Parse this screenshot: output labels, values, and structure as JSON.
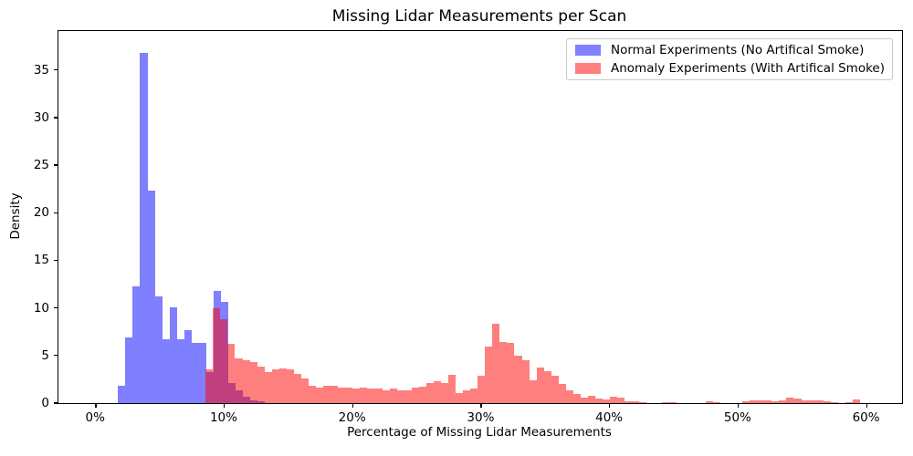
{
  "title": "Missing Lidar Measurements per Scan",
  "xlabel": "Percentage of Missing Lidar Measurements",
  "ylabel": "Density",
  "legend": {
    "position": "upper right",
    "items": [
      {
        "label": "Normal Experiments (No Artifical Smoke)",
        "color": "rgba(0,0,255,0.5)"
      },
      {
        "label": "Anomaly Experiments (With Artifical Smoke)",
        "color": "rgba(255,0,0,0.5)"
      }
    ]
  },
  "chart_data": {
    "type": "bar",
    "subtype": "overlaid-density-histogram",
    "title": "Missing Lidar Measurements per Scan",
    "xlabel": "Percentage of Missing Lidar Measurements",
    "ylabel": "Density",
    "grid": false,
    "legend_position": "upper right",
    "xlim": [
      -2.86,
      62.8
    ],
    "ylim": [
      0,
      39.1
    ],
    "x_tick_values": [
      0,
      10,
      20,
      30,
      40,
      50,
      60
    ],
    "x_tick_labels": [
      "0%",
      "10%",
      "20%",
      "30%",
      "40%",
      "50%",
      "60%"
    ],
    "y_tick_values": [
      0,
      5,
      10,
      15,
      20,
      25,
      30,
      35
    ],
    "y_tick_labels": [
      "0",
      "5",
      "10",
      "15",
      "20",
      "25",
      "30",
      "35"
    ],
    "bin_width_pct": 0.5722,
    "series": [
      {
        "name": "Normal Experiments (No Artifical Smoke)",
        "color": "rgba(0,0,255,0.5)",
        "bin_start_pct": 1.78,
        "densities": [
          1.8,
          6.9,
          12.3,
          36.8,
          22.3,
          11.2,
          6.75,
          10.1,
          6.75,
          7.7,
          6.3,
          6.3,
          3.3,
          11.8,
          10.6,
          2.1,
          1.3,
          0.7,
          0.3,
          0.15
        ]
      },
      {
        "name": "Anomaly Experiments (With Artifical Smoke)",
        "color": "rgba(255,0,0,0.5)",
        "bin_start_pct": 8.6,
        "densities": [
          3.5,
          9.95,
          8.85,
          6.2,
          4.7,
          4.55,
          4.3,
          3.85,
          3.3,
          3.5,
          3.65,
          3.5,
          3.1,
          2.55,
          1.85,
          1.65,
          1.8,
          1.8,
          1.65,
          1.65,
          1.5,
          1.65,
          1.5,
          1.5,
          1.35,
          1.5,
          1.35,
          1.35,
          1.65,
          1.75,
          2.1,
          2.3,
          2.1,
          2.95,
          1.1,
          1.3,
          1.5,
          2.9,
          5.9,
          8.3,
          6.4,
          6.3,
          4.95,
          4.5,
          2.4,
          3.7,
          3.35,
          2.9,
          2.0,
          1.35,
          0.95,
          0.55,
          0.77,
          0.45,
          0.35,
          0.7,
          0.6,
          0.23,
          0.15,
          0.08,
          0,
          0,
          0.12,
          0.08,
          0,
          0,
          0,
          0,
          0.15,
          0.1,
          0,
          0,
          0,
          0.2,
          0.25,
          0.25,
          0.3,
          0.2,
          0.3,
          0.55,
          0.5,
          0.25,
          0.25,
          0.3,
          0.2,
          0.1,
          0,
          0.1,
          0.4
        ]
      }
    ]
  }
}
